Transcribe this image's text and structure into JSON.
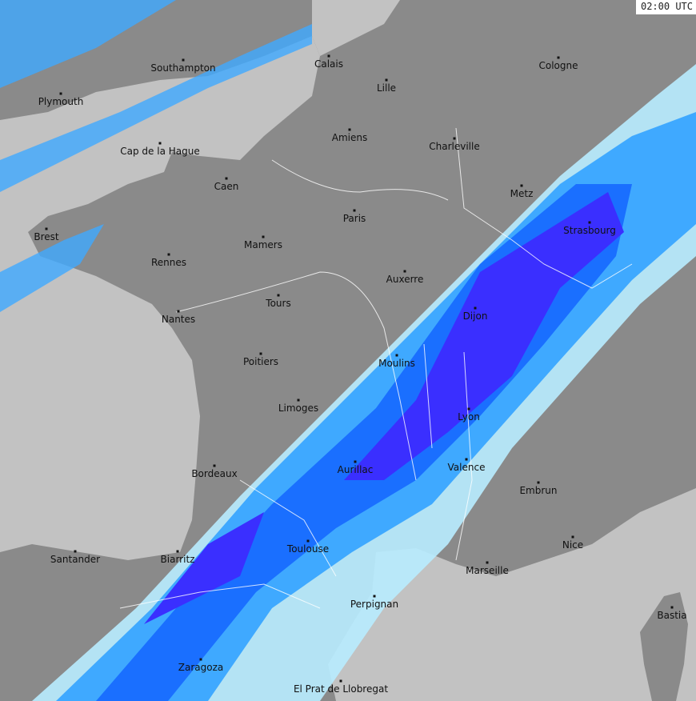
{
  "timestamp": "02:00 UTC",
  "colors": {
    "sea": "#c2c2c2",
    "land": "#8a8a8a",
    "rain_light": "#3fa9ff",
    "rain_medium": "#1a6fff",
    "rain_heavy": "#3a2fff",
    "rain_drizzle": "#b8ecff"
  },
  "cities": [
    {
      "name": "Southampton"
    },
    {
      "name": "Calais"
    },
    {
      "name": "Lille"
    },
    {
      "name": "Cologne"
    },
    {
      "name": "Plymouth"
    },
    {
      "name": "Amiens"
    },
    {
      "name": "Charleville"
    },
    {
      "name": "Cap de la Hague"
    },
    {
      "name": "Caen"
    },
    {
      "name": "Metz"
    },
    {
      "name": "Paris"
    },
    {
      "name": "Strasbourg"
    },
    {
      "name": "Brest"
    },
    {
      "name": "Mamers"
    },
    {
      "name": "Rennes"
    },
    {
      "name": "Auxerre"
    },
    {
      "name": "Tours"
    },
    {
      "name": "Dijon"
    },
    {
      "name": "Nantes"
    },
    {
      "name": "Poitiers"
    },
    {
      "name": "Moulins"
    },
    {
      "name": "Limoges"
    },
    {
      "name": "Lyon"
    },
    {
      "name": "Aurillac"
    },
    {
      "name": "Valence"
    },
    {
      "name": "Bordeaux"
    },
    {
      "name": "Embrun"
    },
    {
      "name": "Nice"
    },
    {
      "name": "Toulouse"
    },
    {
      "name": "Santander"
    },
    {
      "name": "Biarritz"
    },
    {
      "name": "Marseille"
    },
    {
      "name": "Perpignan"
    },
    {
      "name": "Bastia"
    },
    {
      "name": "Zaragoza"
    },
    {
      "name": "El Prat de Llobregat"
    }
  ]
}
